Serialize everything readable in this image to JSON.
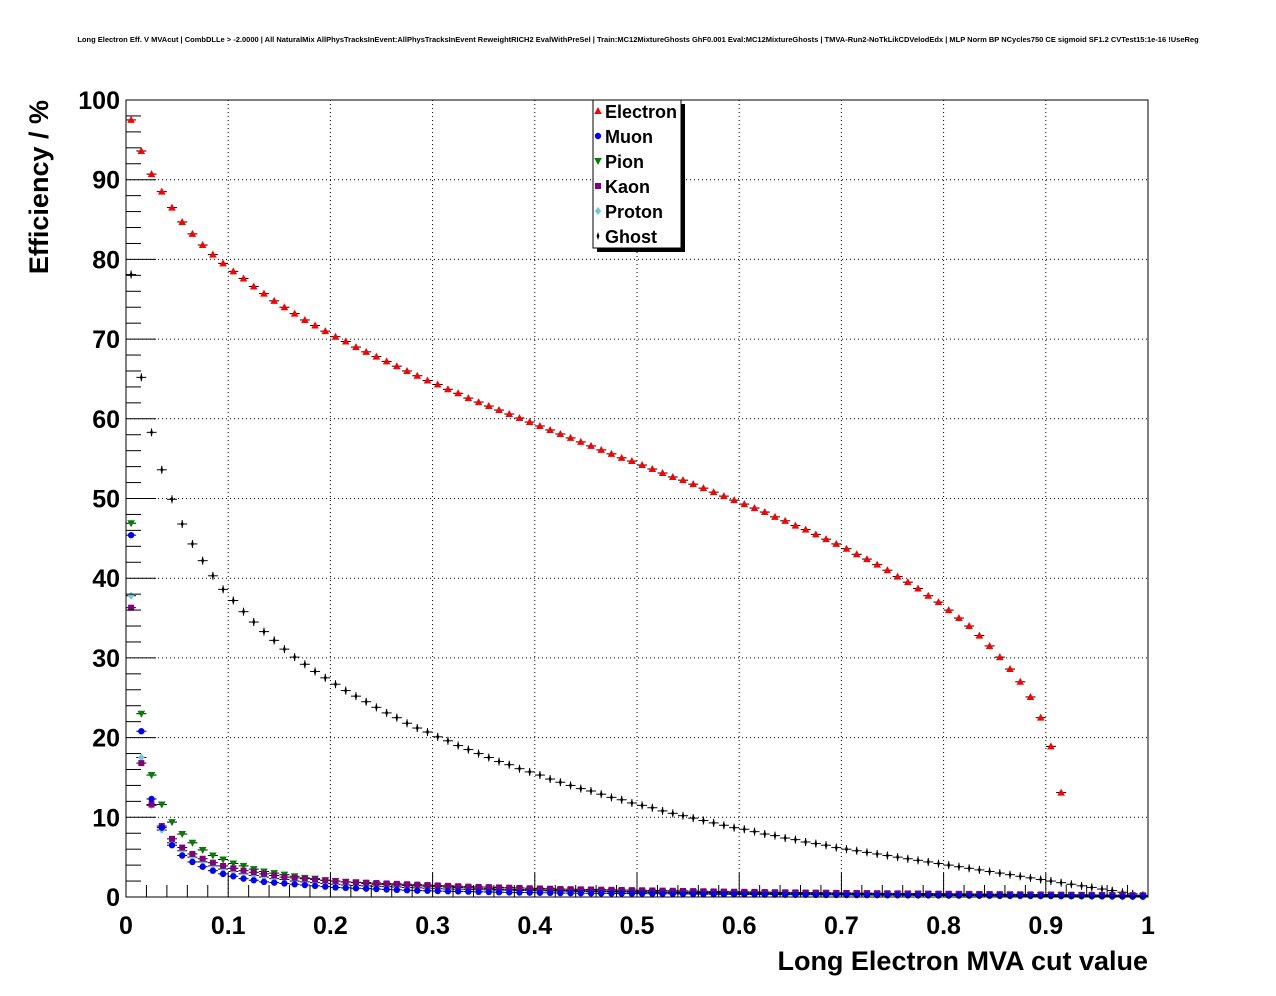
{
  "chart_data": {
    "type": "scatter",
    "title": "Long Electron Eff. V MVAcut | CombDLLe > -2.0000 | All NaturalMix AllPhysTracksInEvent:AllPhysTracksInEvent ReweightRICH2 EvalWithPreSel | Train:MC12MixtureGhosts GhF0.001 Eval:MC12MixtureGhosts | TMVA-Run2-NoTkLikCDVelodEdx | MLP Norm BP NCycles750 CE sigmoid SF1.2 CVTest15:1e-16 !UseReg",
    "xlabel": "Long Electron MVA cut value",
    "ylabel": "Efficiency / %",
    "xlim": [
      0,
      1
    ],
    "ylim": [
      0,
      100
    ],
    "x_ticks": [
      "0",
      "0.1",
      "0.2",
      "0.3",
      "0.4",
      "0.5",
      "0.6",
      "0.7",
      "0.8",
      "0.9",
      "1"
    ],
    "y_ticks": [
      "0",
      "10",
      "20",
      "30",
      "40",
      "50",
      "60",
      "70",
      "80",
      "90",
      "100"
    ],
    "grid": true,
    "legend_position": "top-center",
    "x": [
      0.005,
      0.015,
      0.025,
      0.035,
      0.045,
      0.055,
      0.065,
      0.075,
      0.085,
      0.095,
      0.105,
      0.115,
      0.125,
      0.135,
      0.145,
      0.155,
      0.165,
      0.175,
      0.185,
      0.195,
      0.205,
      0.215,
      0.225,
      0.235,
      0.245,
      0.255,
      0.265,
      0.275,
      0.285,
      0.295,
      0.305,
      0.315,
      0.325,
      0.335,
      0.345,
      0.355,
      0.365,
      0.375,
      0.385,
      0.395,
      0.405,
      0.415,
      0.425,
      0.435,
      0.445,
      0.455,
      0.465,
      0.475,
      0.485,
      0.495,
      0.505,
      0.515,
      0.525,
      0.535,
      0.545,
      0.555,
      0.565,
      0.575,
      0.585,
      0.595,
      0.605,
      0.615,
      0.625,
      0.635,
      0.645,
      0.655,
      0.665,
      0.675,
      0.685,
      0.695,
      0.705,
      0.715,
      0.725,
      0.735,
      0.745,
      0.755,
      0.765,
      0.775,
      0.785,
      0.795,
      0.805,
      0.815,
      0.825,
      0.835,
      0.845,
      0.855,
      0.865,
      0.875,
      0.885,
      0.895,
      0.905,
      0.915,
      0.925,
      0.935,
      0.945,
      0.955,
      0.965,
      0.975,
      0.985,
      0.995
    ],
    "series": [
      {
        "name": "Electron",
        "color": "#ff0000",
        "marker": "triangle-up",
        "values": [
          97.5,
          93.6,
          90.7,
          88.5,
          86.5,
          84.7,
          83.2,
          81.8,
          80.6,
          79.5,
          78.5,
          77.6,
          76.6,
          75.7,
          74.8,
          74.0,
          73.2,
          72.4,
          71.7,
          71.0,
          70.3,
          69.7,
          69.0,
          68.4,
          67.8,
          67.2,
          66.6,
          66.0,
          65.4,
          64.8,
          64.3,
          63.7,
          63.2,
          62.6,
          62.1,
          61.6,
          61.1,
          60.6,
          60.1,
          59.6,
          59.1,
          58.6,
          58.1,
          57.6,
          57.1,
          56.6,
          56.1,
          55.6,
          55.1,
          54.7,
          54.2,
          53.7,
          53.2,
          52.7,
          52.3,
          51.8,
          51.3,
          50.8,
          50.3,
          49.8,
          49.3,
          48.8,
          48.3,
          47.7,
          47.2,
          46.6,
          46.1,
          45.5,
          44.9,
          44.3,
          43.7,
          43.0,
          42.4,
          41.7,
          41.0,
          40.2,
          39.5,
          38.7,
          37.8,
          37.0,
          36.0,
          35.0,
          34.0,
          32.8,
          31.5,
          30.1,
          28.6,
          27.0,
          25.1,
          22.5,
          18.9,
          13.1,
          null,
          null,
          null,
          null,
          null,
          null,
          null,
          null
        ]
      },
      {
        "name": "Muon",
        "color": "#0000ff",
        "marker": "circle",
        "values": [
          45.4,
          20.8,
          12.3,
          8.7,
          6.5,
          5.2,
          4.4,
          3.8,
          3.3,
          2.9,
          2.6,
          2.3,
          2.1,
          1.9,
          1.8,
          1.7,
          1.6,
          1.5,
          1.4,
          1.3,
          1.2,
          1.15,
          1.1,
          1.05,
          1.0,
          0.95,
          0.9,
          0.85,
          0.8,
          0.78,
          0.75,
          0.72,
          0.7,
          0.68,
          0.65,
          0.63,
          0.6,
          0.58,
          0.56,
          0.55,
          0.53,
          0.52,
          0.5,
          0.49,
          0.48,
          0.47,
          0.46,
          0.45,
          0.44,
          0.43,
          0.42,
          0.41,
          0.4,
          0.39,
          0.38,
          0.37,
          0.36,
          0.35,
          0.34,
          0.33,
          0.32,
          0.31,
          0.3,
          0.3,
          0.29,
          0.28,
          0.28,
          0.27,
          0.26,
          0.26,
          0.25,
          0.24,
          0.24,
          0.23,
          0.22,
          0.22,
          0.21,
          0.2,
          0.2,
          0.19,
          0.18,
          0.18,
          0.17,
          0.16,
          0.16,
          0.15,
          0.14,
          0.14,
          0.13,
          0.12,
          0.12,
          0.11,
          0.1,
          0.1,
          0.09,
          0.08,
          0.07,
          0.06,
          0.05,
          0.04
        ]
      },
      {
        "name": "Pion",
        "color": "#008000",
        "marker": "triangle-down",
        "values": [
          46.9,
          23.0,
          15.3,
          11.6,
          9.4,
          7.9,
          6.8,
          5.9,
          5.2,
          4.7,
          4.2,
          3.9,
          3.5,
          3.2,
          3.0,
          2.8,
          2.6,
          2.4,
          2.3,
          2.1,
          2.0,
          1.9,
          1.8,
          1.7,
          1.6,
          1.55,
          1.5,
          1.45,
          1.4,
          1.35,
          1.3,
          1.25,
          1.2,
          1.15,
          1.1,
          1.05,
          1.0,
          0.98,
          0.95,
          0.92,
          0.9,
          0.87,
          0.85,
          0.82,
          0.8,
          0.78,
          0.76,
          0.74,
          0.72,
          0.7,
          0.68,
          0.66,
          0.64,
          0.62,
          0.6,
          0.59,
          0.58,
          0.56,
          0.55,
          0.54,
          0.52,
          0.51,
          0.5,
          0.49,
          0.48,
          0.47,
          0.46,
          0.45,
          0.44,
          0.43,
          0.42,
          0.41,
          0.4,
          0.39,
          0.38,
          0.37,
          0.36,
          0.35,
          0.34,
          0.33,
          0.32,
          0.31,
          0.3,
          0.29,
          0.28,
          0.27,
          0.26,
          0.25,
          0.24,
          0.23,
          0.22,
          0.21,
          0.2,
          0.19,
          0.18,
          0.17,
          0.16,
          0.15,
          0.14,
          0.13
        ]
      },
      {
        "name": "Kaon",
        "color": "#800080",
        "marker": "square",
        "values": [
          36.3,
          16.8,
          11.6,
          8.9,
          7.3,
          6.2,
          5.4,
          4.8,
          4.3,
          3.9,
          3.6,
          3.3,
          3.1,
          2.9,
          2.7,
          2.5,
          2.4,
          2.3,
          2.2,
          2.1,
          2.0,
          1.9,
          1.85,
          1.8,
          1.75,
          1.7,
          1.65,
          1.6,
          1.55,
          1.5,
          1.45,
          1.4,
          1.35,
          1.3,
          1.27,
          1.24,
          1.2,
          1.17,
          1.14,
          1.1,
          1.07,
          1.04,
          1.0,
          0.98,
          0.96,
          0.94,
          0.92,
          0.9,
          0.88,
          0.86,
          0.84,
          0.82,
          0.8,
          0.78,
          0.76,
          0.74,
          0.72,
          0.7,
          0.68,
          0.66,
          0.65,
          0.64,
          0.62,
          0.6,
          0.59,
          0.58,
          0.56,
          0.55,
          0.54,
          0.52,
          0.51,
          0.5,
          0.49,
          0.48,
          0.47,
          0.46,
          0.45,
          0.44,
          0.43,
          0.42,
          0.41,
          0.4,
          0.39,
          0.38,
          0.37,
          0.36,
          0.35,
          0.34,
          0.33,
          0.32,
          0.31,
          0.3,
          0.29,
          0.28,
          0.27,
          0.26,
          0.25,
          0.24,
          0.23,
          0.22
        ]
      },
      {
        "name": "Proton",
        "color": "#6ec9d8",
        "marker": "diamond",
        "values": [
          37.8,
          17.5,
          11.5,
          8.4,
          6.8,
          5.8,
          5.0,
          4.4,
          3.9,
          3.5,
          3.2,
          2.9,
          2.7,
          2.5,
          2.3,
          2.2,
          2.0,
          1.9,
          1.8,
          1.7,
          1.6,
          1.5,
          1.45,
          1.4,
          1.35,
          1.3,
          1.25,
          1.2,
          1.15,
          1.1,
          1.05,
          1.0,
          0.98,
          0.95,
          0.92,
          0.9,
          0.87,
          0.85,
          0.82,
          0.8,
          0.78,
          0.76,
          0.74,
          0.72,
          0.7,
          0.68,
          0.66,
          0.64,
          0.62,
          0.6,
          0.58,
          0.56,
          0.55,
          0.54,
          0.52,
          0.5,
          0.49,
          0.48,
          0.46,
          0.45,
          0.44,
          0.43,
          0.42,
          0.41,
          0.4,
          0.39,
          0.38,
          0.37,
          0.36,
          0.35,
          0.34,
          0.33,
          0.32,
          0.31,
          0.3,
          0.29,
          0.28,
          0.27,
          0.26,
          0.25,
          0.24,
          0.23,
          0.22,
          0.21,
          0.2,
          0.19,
          0.18,
          0.17,
          0.16,
          0.15,
          0.14,
          0.13,
          0.12,
          0.11,
          0.1,
          0.09,
          0.08,
          0.07,
          0.06,
          0.05
        ]
      },
      {
        "name": "Ghost",
        "color": "#000000",
        "marker": "cross",
        "values": [
          78.1,
          65.2,
          58.3,
          53.6,
          49.9,
          46.8,
          44.3,
          42.2,
          40.3,
          38.6,
          37.2,
          35.8,
          34.5,
          33.3,
          32.2,
          31.1,
          30.1,
          29.2,
          28.3,
          27.5,
          26.7,
          25.9,
          25.2,
          24.5,
          23.8,
          23.1,
          22.5,
          21.8,
          21.2,
          20.7,
          20.1,
          19.6,
          19.0,
          18.5,
          18.0,
          17.5,
          17.0,
          16.6,
          16.1,
          15.7,
          15.3,
          14.8,
          14.4,
          14.0,
          13.6,
          13.3,
          12.9,
          12.5,
          12.2,
          11.8,
          11.5,
          11.2,
          10.8,
          10.5,
          10.2,
          9.9,
          9.6,
          9.3,
          9.0,
          8.7,
          8.5,
          8.2,
          7.9,
          7.7,
          7.4,
          7.2,
          6.9,
          6.7,
          6.5,
          6.2,
          6.0,
          5.8,
          5.6,
          5.4,
          5.2,
          5.0,
          4.8,
          4.6,
          4.4,
          4.2,
          4.0,
          3.8,
          3.6,
          3.4,
          3.2,
          3.0,
          2.8,
          2.6,
          2.4,
          2.2,
          2.0,
          1.8,
          1.6,
          1.4,
          1.2,
          1.0,
          0.8,
          0.6,
          0.4,
          0.2
        ]
      }
    ]
  }
}
